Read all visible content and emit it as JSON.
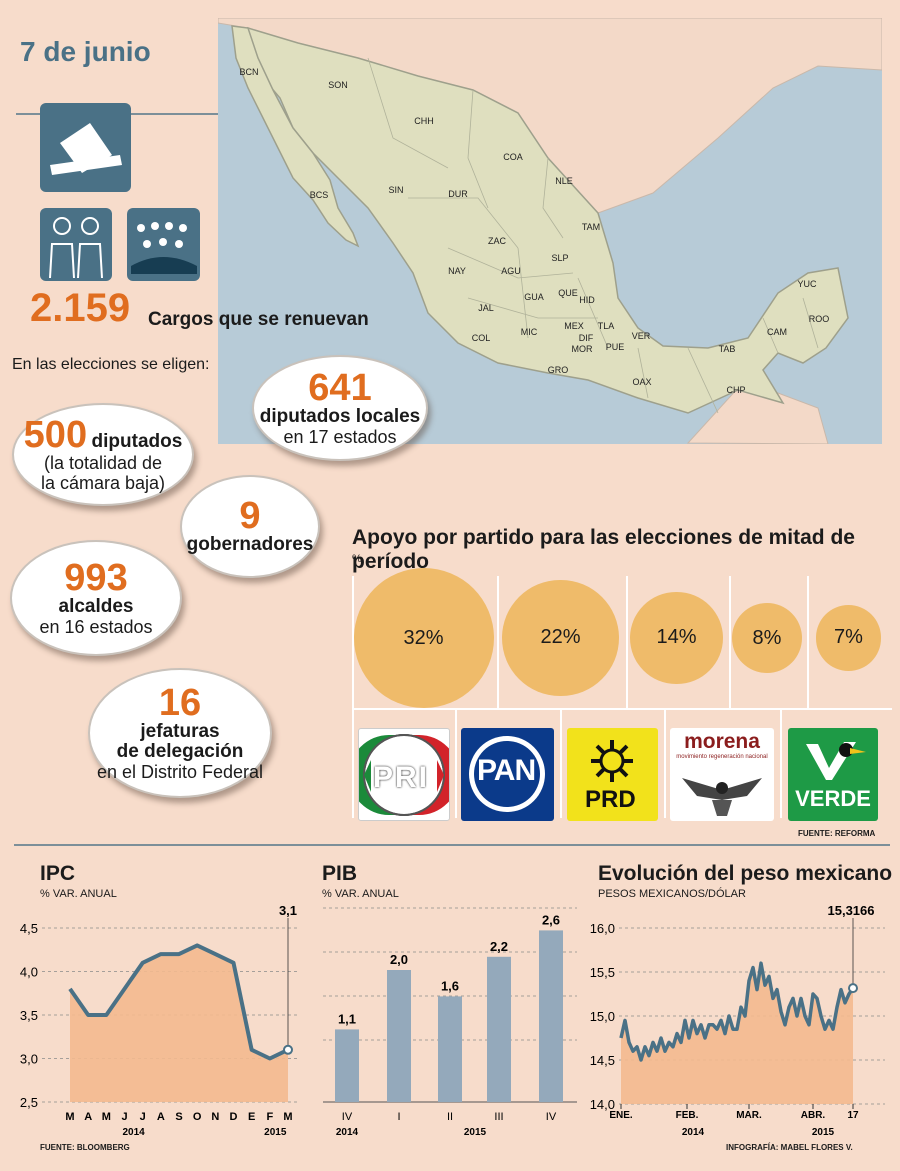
{
  "date": "7 de junio",
  "icons": [
    "ballot-box-icon",
    "candidates-icon",
    "assembly-icon"
  ],
  "total": {
    "value": "2.159",
    "label": "Cargos que se renuevan"
  },
  "intro": "En las elecciones se eligen:",
  "bubbles": {
    "diputados_locales": {
      "n": "641",
      "b": "diputados locales",
      "t": "en 17 estados"
    },
    "diputados": {
      "n": "500",
      "b": "diputados",
      "t1": "(la totalidad de",
      "t2": "la cámara baja)"
    },
    "gobernadores": {
      "n": "9",
      "b": "gobernadores"
    },
    "alcaldes": {
      "n": "993",
      "b": "alcaldes",
      "t": "en 16 estados"
    },
    "jefaturas": {
      "n": "16",
      "b1": "jefaturas",
      "b2": "de delegación",
      "t": "en el Distrito Federal"
    }
  },
  "map_states": [
    "BCN",
    "SON",
    "CHH",
    "COA",
    "NLE",
    "TAM",
    "BCS",
    "SIN",
    "DUR",
    "ZAC",
    "SLP",
    "NAY",
    "AGU",
    "GUA",
    "QUE",
    "HID",
    "JAL",
    "MIC",
    "MEX",
    "DIF",
    "TLA",
    "MOR",
    "PUE",
    "VER",
    "COL",
    "GRO",
    "OAX",
    "TAB",
    "CAM",
    "YUC",
    "ROO",
    "CHP"
  ],
  "support": {
    "title": "Apoyo por partido para las elecciones de mitad de período",
    "unit": "%",
    "source": "FUENTE: REFORMA",
    "parties": [
      {
        "name": "PRI",
        "value": 32,
        "label": "32%"
      },
      {
        "name": "PAN",
        "value": 22,
        "label": "22%"
      },
      {
        "name": "PRD",
        "value": 14,
        "label": "14%"
      },
      {
        "name": "morena",
        "sub": "movimiento regeneración nacional",
        "value": 8,
        "label": "8%"
      },
      {
        "name": "VERDE",
        "value": 7,
        "label": "7%"
      }
    ],
    "colors": {
      "bubble": "#efbb6a"
    }
  },
  "chart_data": [
    {
      "type": "area",
      "title": "IPC",
      "ylabel": "% VAR. ANUAL",
      "ylim": [
        2.5,
        4.5
      ],
      "yticks": [
        "2,5",
        "3,0",
        "3,5",
        "4,0",
        "4,5"
      ],
      "categories": [
        "M",
        "A",
        "M",
        "J",
        "J",
        "A",
        "S",
        "O",
        "N",
        "D",
        "E",
        "F",
        "M"
      ],
      "values": [
        3.8,
        3.5,
        3.5,
        3.8,
        4.1,
        4.2,
        4.2,
        4.3,
        4.2,
        4.1,
        3.1,
        3.0,
        3.1
      ],
      "year_labels": [
        "2014",
        "2015"
      ],
      "last_label": "3,1",
      "source": "FUENTE: BLOOMBERG"
    },
    {
      "type": "bar",
      "title": "PIB",
      "ylabel": "% VAR. ANUAL",
      "categories": [
        "IV",
        "I",
        "II",
        "III",
        "IV"
      ],
      "values": [
        1.1,
        2.0,
        1.6,
        2.2,
        2.6
      ],
      "labels": [
        "1,1",
        "2,0",
        "1,6",
        "2,2",
        "2,6"
      ],
      "year_labels": [
        "2014",
        "2015"
      ]
    },
    {
      "type": "line",
      "title": "Evolución del peso mexicano",
      "ylabel": "PESOS MEXICANOS/DÓLAR",
      "ylim": [
        14.0,
        16.0
      ],
      "yticks": [
        "14,0",
        "14,5",
        "15,0",
        "15,5",
        "16,0"
      ],
      "xticks": [
        "ENE.",
        "FEB.",
        "MAR.",
        "ABR.",
        "17"
      ],
      "year_labels": [
        "2014",
        "2015"
      ],
      "values": [
        14.75,
        14.95,
        14.7,
        14.6,
        14.65,
        14.5,
        14.65,
        14.55,
        14.7,
        14.6,
        14.75,
        14.6,
        14.7,
        14.65,
        14.8,
        14.7,
        14.95,
        14.75,
        14.95,
        14.8,
        14.9,
        14.75,
        14.9,
        14.9,
        14.85,
        14.95,
        14.8,
        15.0,
        14.85,
        14.85,
        15.1,
        15.0,
        15.4,
        15.55,
        15.3,
        15.6,
        15.35,
        15.45,
        15.2,
        15.3,
        15.05,
        14.9,
        15.1,
        15.2,
        15.0,
        15.2,
        15.0,
        14.9,
        15.25,
        15.2,
        15.0,
        14.85,
        14.95,
        14.85,
        15.1,
        15.3,
        15.15,
        15.25,
        15.3166
      ],
      "last_label": "15,3166",
      "credit": "INFOGRAFÍA: MABEL FLORES V."
    }
  ]
}
